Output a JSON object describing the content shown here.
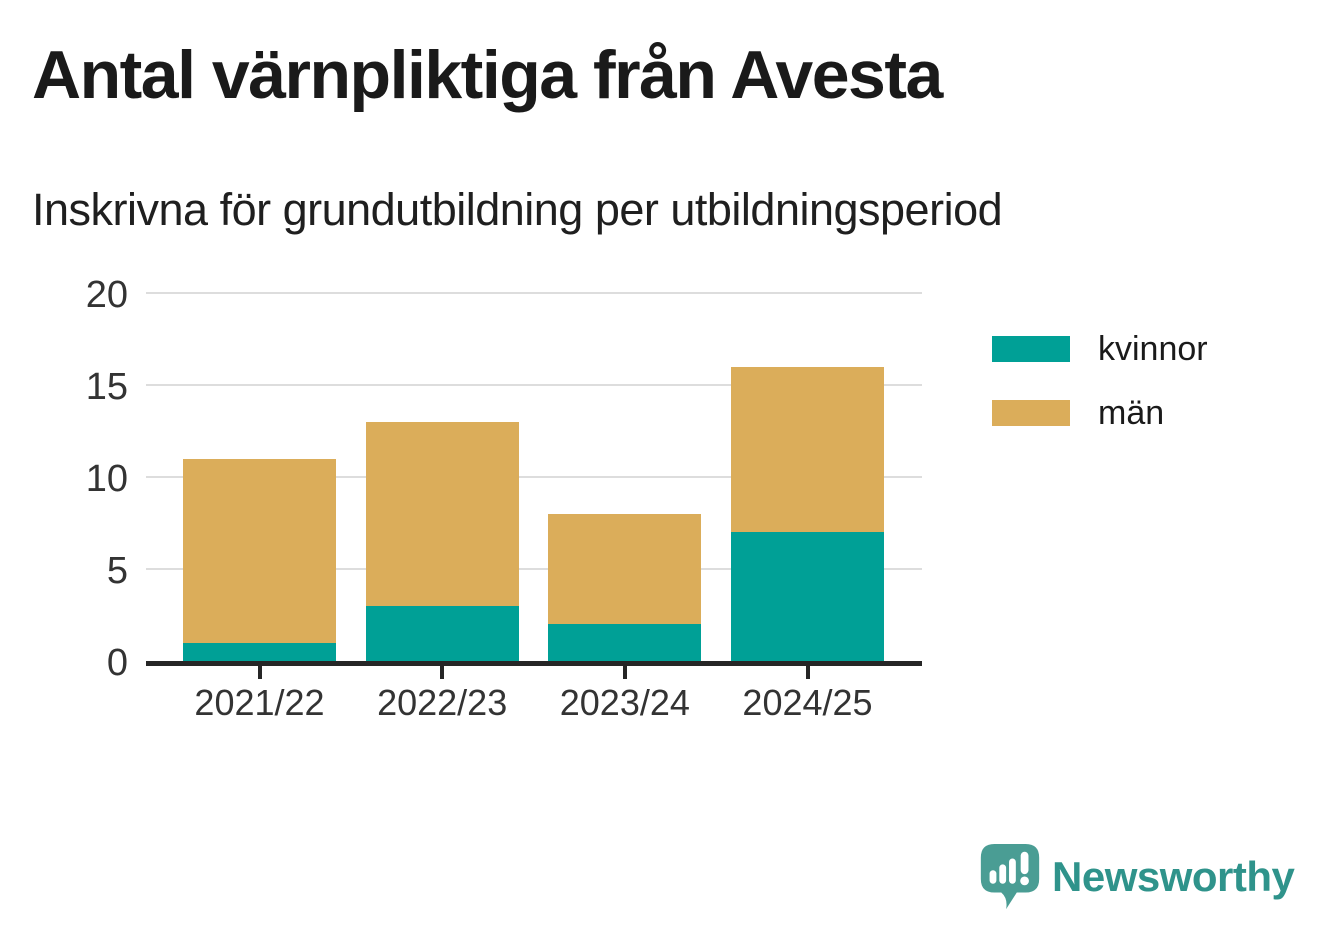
{
  "title": "Antal värnpliktiga från Avesta",
  "subtitle": "Inskrivna för grundutbildning per utbildningsperiod",
  "branding": {
    "logo_text": "Newsworthy"
  },
  "colors": {
    "kvinnor": "#00A096",
    "man": "#DBAD5A",
    "axis": "#262626",
    "gridline": "#DDDDDD",
    "title_text": "#1A1A1A",
    "tick_text": "#333333",
    "logo_teal": "#4A9D94",
    "logo_text_teal": "#2F938B",
    "background": "#FFFFFF"
  },
  "chart_data": {
    "type": "bar",
    "stacked": true,
    "title": "Antal värnpliktiga från Avesta",
    "subtitle": "Inskrivna för grundutbildning per utbildningsperiod",
    "categories": [
      "2021/22",
      "2022/23",
      "2023/24",
      "2024/25"
    ],
    "series": [
      {
        "name": "kvinnor",
        "color": "#00A096",
        "values": [
          1,
          3,
          2,
          7
        ]
      },
      {
        "name": "män",
        "color": "#DBAD5A",
        "values": [
          10,
          10,
          6,
          9
        ]
      }
    ],
    "totals": [
      11,
      13,
      8,
      16
    ],
    "xlabel": "",
    "ylabel": "",
    "ylim": [
      0,
      20
    ],
    "yticks": [
      0,
      5,
      10,
      15,
      20
    ],
    "grid": "horizontal",
    "legend_position": "right",
    "legend_items": [
      "kvinnor",
      "män"
    ]
  }
}
